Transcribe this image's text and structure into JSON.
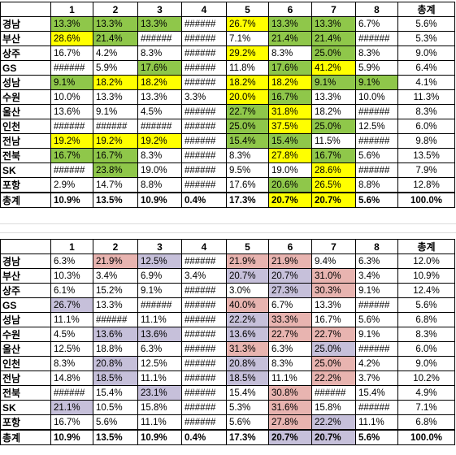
{
  "headers": [
    "",
    "1",
    "2",
    "3",
    "4",
    "5",
    "6",
    "7",
    "8",
    "총계"
  ],
  "table1": [
    {
      "label": "경남",
      "cells": [
        [
          "13.3%",
          "G"
        ],
        [
          "13.3%",
          "G"
        ],
        [
          "13.3%",
          "G"
        ],
        [
          "######",
          ""
        ],
        [
          "26.7%",
          "Y"
        ],
        [
          "13.3%",
          "G"
        ],
        [
          "13.3%",
          "G"
        ],
        [
          "6.7%",
          ""
        ],
        [
          "5.6%",
          ""
        ]
      ]
    },
    {
      "label": "부산",
      "cells": [
        [
          "28.6%",
          "Y"
        ],
        [
          "21.4%",
          "G"
        ],
        [
          "######",
          ""
        ],
        [
          "######",
          ""
        ],
        [
          "7.1%",
          ""
        ],
        [
          "21.4%",
          "G"
        ],
        [
          "21.4%",
          "G"
        ],
        [
          "######",
          ""
        ],
        [
          "5.3%",
          ""
        ]
      ]
    },
    {
      "label": "상주",
      "cells": [
        [
          "16.7%",
          ""
        ],
        [
          "4.2%",
          ""
        ],
        [
          "8.3%",
          ""
        ],
        [
          "######",
          ""
        ],
        [
          "29.2%",
          "Y"
        ],
        [
          "8.3%",
          ""
        ],
        [
          "25.0%",
          "G"
        ],
        [
          "8.3%",
          ""
        ],
        [
          "9.0%",
          ""
        ]
      ]
    },
    {
      "label": "GS",
      "cells": [
        [
          "######",
          ""
        ],
        [
          "5.9%",
          ""
        ],
        [
          "17.6%",
          "G"
        ],
        [
          "######",
          ""
        ],
        [
          "11.8%",
          ""
        ],
        [
          "17.6%",
          "G"
        ],
        [
          "41.2%",
          "Y"
        ],
        [
          "5.9%",
          ""
        ],
        [
          "6.4%",
          ""
        ]
      ]
    },
    {
      "label": "성남",
      "cells": [
        [
          "9.1%",
          "G"
        ],
        [
          "18.2%",
          "Y"
        ],
        [
          "18.2%",
          "Y"
        ],
        [
          "######",
          ""
        ],
        [
          "18.2%",
          "Y"
        ],
        [
          "18.2%",
          "Y"
        ],
        [
          "9.1%",
          "G"
        ],
        [
          "9.1%",
          "G"
        ],
        [
          "4.1%",
          ""
        ]
      ]
    },
    {
      "label": "수원",
      "cells": [
        [
          "10.0%",
          ""
        ],
        [
          "13.3%",
          ""
        ],
        [
          "13.3%",
          ""
        ],
        [
          "3.3%",
          ""
        ],
        [
          "20.0%",
          "Y"
        ],
        [
          "16.7%",
          "G"
        ],
        [
          "13.3%",
          ""
        ],
        [
          "10.0%",
          ""
        ],
        [
          "11.3%",
          ""
        ]
      ]
    },
    {
      "label": "울산",
      "cells": [
        [
          "13.6%",
          ""
        ],
        [
          "9.1%",
          ""
        ],
        [
          "4.5%",
          ""
        ],
        [
          "######",
          ""
        ],
        [
          "22.7%",
          "G"
        ],
        [
          "31.8%",
          "Y"
        ],
        [
          "18.2%",
          ""
        ],
        [
          "######",
          ""
        ],
        [
          "8.3%",
          ""
        ]
      ]
    },
    {
      "label": "인천",
      "cells": [
        [
          "######",
          ""
        ],
        [
          "######",
          ""
        ],
        [
          "######",
          ""
        ],
        [
          "######",
          ""
        ],
        [
          "25.0%",
          "G"
        ],
        [
          "37.5%",
          "Y"
        ],
        [
          "25.0%",
          "G"
        ],
        [
          "12.5%",
          ""
        ],
        [
          "6.0%",
          ""
        ]
      ]
    },
    {
      "label": "전남",
      "cells": [
        [
          "19.2%",
          "Y"
        ],
        [
          "19.2%",
          "Y"
        ],
        [
          "19.2%",
          "Y"
        ],
        [
          "######",
          ""
        ],
        [
          "15.4%",
          "G"
        ],
        [
          "15.4%",
          "G"
        ],
        [
          "11.5%",
          ""
        ],
        [
          "######",
          ""
        ],
        [
          "9.8%",
          ""
        ]
      ]
    },
    {
      "label": "전북",
      "cells": [
        [
          "16.7%",
          "G"
        ],
        [
          "16.7%",
          "G"
        ],
        [
          "8.3%",
          ""
        ],
        [
          "######",
          ""
        ],
        [
          "8.3%",
          ""
        ],
        [
          "27.8%",
          "Y"
        ],
        [
          "16.7%",
          "G"
        ],
        [
          "5.6%",
          ""
        ],
        [
          "13.5%",
          ""
        ]
      ]
    },
    {
      "label": "SK",
      "cells": [
        [
          "######",
          ""
        ],
        [
          "23.8%",
          "G"
        ],
        [
          "19.0%",
          ""
        ],
        [
          "######",
          ""
        ],
        [
          "9.5%",
          ""
        ],
        [
          "19.0%",
          ""
        ],
        [
          "28.6%",
          "Y"
        ],
        [
          "######",
          ""
        ],
        [
          "7.9%",
          ""
        ]
      ]
    },
    {
      "label": "포항",
      "cells": [
        [
          "2.9%",
          ""
        ],
        [
          "14.7%",
          ""
        ],
        [
          "8.8%",
          ""
        ],
        [
          "######",
          ""
        ],
        [
          "17.6%",
          ""
        ],
        [
          "20.6%",
          "G"
        ],
        [
          "26.5%",
          "Y"
        ],
        [
          "8.8%",
          ""
        ],
        [
          "12.8%",
          ""
        ]
      ]
    },
    {
      "label": "총계",
      "total": true,
      "cells": [
        [
          "10.9%",
          ""
        ],
        [
          "13.5%",
          ""
        ],
        [
          "10.9%",
          ""
        ],
        [
          "0.4%",
          ""
        ],
        [
          "17.3%",
          ""
        ],
        [
          "20.7%",
          "Y"
        ],
        [
          "20.7%",
          "Y"
        ],
        [
          "5.6%",
          ""
        ],
        [
          "100.0%",
          ""
        ]
      ]
    }
  ],
  "table2": [
    {
      "label": "경남",
      "cells": [
        [
          "6.3%",
          ""
        ],
        [
          "21.9%",
          "R"
        ],
        [
          "12.5%",
          "P"
        ],
        [
          "######",
          ""
        ],
        [
          "21.9%",
          "R"
        ],
        [
          "21.9%",
          "R"
        ],
        [
          "9.4%",
          ""
        ],
        [
          "6.3%",
          ""
        ],
        [
          "12.0%",
          ""
        ]
      ]
    },
    {
      "label": "부산",
      "cells": [
        [
          "10.3%",
          ""
        ],
        [
          "3.4%",
          ""
        ],
        [
          "6.9%",
          ""
        ],
        [
          "3.4%",
          ""
        ],
        [
          "20.7%",
          "P"
        ],
        [
          "20.7%",
          "P"
        ],
        [
          "31.0%",
          "R"
        ],
        [
          "3.4%",
          ""
        ],
        [
          "10.9%",
          ""
        ]
      ]
    },
    {
      "label": "상주",
      "cells": [
        [
          "6.1%",
          ""
        ],
        [
          "15.2%",
          ""
        ],
        [
          "9.1%",
          ""
        ],
        [
          "######",
          ""
        ],
        [
          "3.0%",
          ""
        ],
        [
          "27.3%",
          "P"
        ],
        [
          "30.3%",
          "R"
        ],
        [
          "9.1%",
          ""
        ],
        [
          "12.4%",
          ""
        ]
      ]
    },
    {
      "label": "GS",
      "cells": [
        [
          "26.7%",
          "P"
        ],
        [
          "13.3%",
          ""
        ],
        [
          "######",
          ""
        ],
        [
          "######",
          ""
        ],
        [
          "40.0%",
          "R"
        ],
        [
          "6.7%",
          ""
        ],
        [
          "13.3%",
          ""
        ],
        [
          "######",
          ""
        ],
        [
          "5.6%",
          ""
        ]
      ]
    },
    {
      "label": "성남",
      "cells": [
        [
          "11.1%",
          ""
        ],
        [
          "######",
          ""
        ],
        [
          "11.1%",
          ""
        ],
        [
          "######",
          ""
        ],
        [
          "22.2%",
          "P"
        ],
        [
          "33.3%",
          "R"
        ],
        [
          "16.7%",
          ""
        ],
        [
          "5.6%",
          ""
        ],
        [
          "6.8%",
          ""
        ]
      ]
    },
    {
      "label": "수원",
      "cells": [
        [
          "4.5%",
          ""
        ],
        [
          "13.6%",
          "P"
        ],
        [
          "13.6%",
          "P"
        ],
        [
          "######",
          ""
        ],
        [
          "13.6%",
          "P"
        ],
        [
          "22.7%",
          "R"
        ],
        [
          "22.7%",
          "R"
        ],
        [
          "9.1%",
          ""
        ],
        [
          "8.3%",
          ""
        ]
      ]
    },
    {
      "label": "울산",
      "cells": [
        [
          "12.5%",
          ""
        ],
        [
          "18.8%",
          ""
        ],
        [
          "6.3%",
          ""
        ],
        [
          "######",
          ""
        ],
        [
          "31.3%",
          "R"
        ],
        [
          "6.3%",
          ""
        ],
        [
          "25.0%",
          "P"
        ],
        [
          "######",
          ""
        ],
        [
          "6.0%",
          ""
        ]
      ]
    },
    {
      "label": "인천",
      "cells": [
        [
          "8.3%",
          ""
        ],
        [
          "20.8%",
          "P"
        ],
        [
          "12.5%",
          ""
        ],
        [
          "######",
          ""
        ],
        [
          "20.8%",
          "P"
        ],
        [
          "8.3%",
          ""
        ],
        [
          "25.0%",
          "R"
        ],
        [
          "4.2%",
          ""
        ],
        [
          "9.0%",
          ""
        ]
      ]
    },
    {
      "label": "전남",
      "cells": [
        [
          "14.8%",
          ""
        ],
        [
          "18.5%",
          "P"
        ],
        [
          "11.1%",
          ""
        ],
        [
          "######",
          ""
        ],
        [
          "18.5%",
          "P"
        ],
        [
          "11.1%",
          ""
        ],
        [
          "22.2%",
          "R"
        ],
        [
          "3.7%",
          ""
        ],
        [
          "10.2%",
          ""
        ]
      ]
    },
    {
      "label": "전북",
      "cells": [
        [
          "######",
          ""
        ],
        [
          "15.4%",
          ""
        ],
        [
          "23.1%",
          "P"
        ],
        [
          "######",
          ""
        ],
        [
          "15.4%",
          ""
        ],
        [
          "30.8%",
          "R"
        ],
        [
          "######",
          ""
        ],
        [
          "15.4%",
          ""
        ],
        [
          "4.9%",
          ""
        ]
      ]
    },
    {
      "label": "SK",
      "cells": [
        [
          "21.1%",
          "P"
        ],
        [
          "10.5%",
          ""
        ],
        [
          "15.8%",
          ""
        ],
        [
          "######",
          ""
        ],
        [
          "5.3%",
          ""
        ],
        [
          "31.6%",
          "R"
        ],
        [
          "15.8%",
          ""
        ],
        [
          "######",
          ""
        ],
        [
          "7.1%",
          ""
        ]
      ]
    },
    {
      "label": "포항",
      "cells": [
        [
          "16.7%",
          ""
        ],
        [
          "5.6%",
          ""
        ],
        [
          "11.1%",
          ""
        ],
        [
          "######",
          ""
        ],
        [
          "5.6%",
          ""
        ],
        [
          "27.8%",
          "R"
        ],
        [
          "22.2%",
          "P"
        ],
        [
          "11.1%",
          ""
        ],
        [
          "6.8%",
          ""
        ]
      ]
    },
    {
      "label": "총계",
      "total": true,
      "cells": [
        [
          "10.9%",
          ""
        ],
        [
          "13.5%",
          ""
        ],
        [
          "10.9%",
          ""
        ],
        [
          "0.4%",
          ""
        ],
        [
          "17.3%",
          ""
        ],
        [
          "20.7%",
          "P"
        ],
        [
          "20.7%",
          "P"
        ],
        [
          "5.6%",
          ""
        ],
        [
          "100.0%",
          ""
        ]
      ]
    }
  ],
  "colors": {
    "G": "#8fc74a",
    "Y": "#ffff00",
    "R": "#e8b4b0",
    "P": "#c6c0da"
  }
}
